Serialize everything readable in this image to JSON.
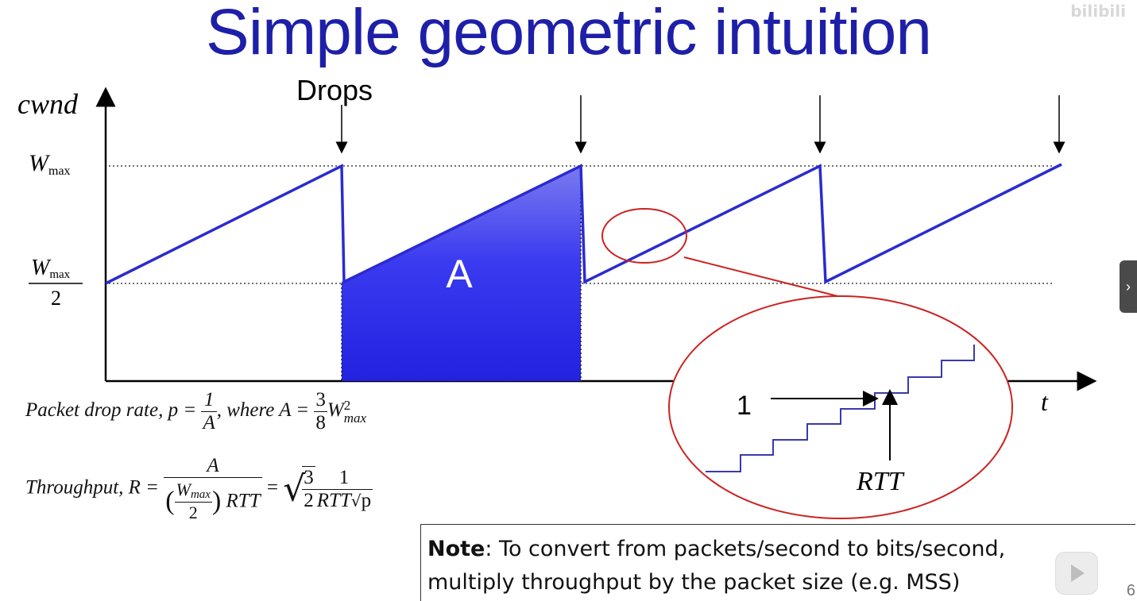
{
  "slide": {
    "title": "Simple geometric intuition",
    "watermark": "bilibili",
    "page_number": "6"
  },
  "diagram": {
    "y_label": "cwnd",
    "x_label": "t",
    "w_max_label": "W",
    "w_max_sub": "max",
    "half_den": "2",
    "drops_label": "Drops",
    "area_label": "A",
    "zoom_one": "1",
    "zoom_rtt": "RTT",
    "colors": {
      "line": "#2b2bd0",
      "area": "#3333ee",
      "zoom_circle": "#cc2222",
      "title": "#1e1fa8"
    }
  },
  "formulas": {
    "drop_rate_prefix": "Packet drop rate, p =",
    "drop_rate_num": "1",
    "drop_rate_den": "A",
    "where": ", where A =",
    "three": "3",
    "eight": "8",
    "w": "W",
    "max": "max",
    "sq": "2",
    "throughput_prefix": "Throughput, R =",
    "tp_num": "A",
    "tp_den_rtt": "RTT",
    "equals": "=",
    "root_num": "3",
    "root_den": "2",
    "one": "1",
    "rtt": "RTT",
    "p": "p"
  },
  "note": {
    "bold": "Note",
    "text": ": To convert from packets/second to bits/second,",
    "text2": "multiply throughput by the packet size (e.g. MSS)"
  }
}
